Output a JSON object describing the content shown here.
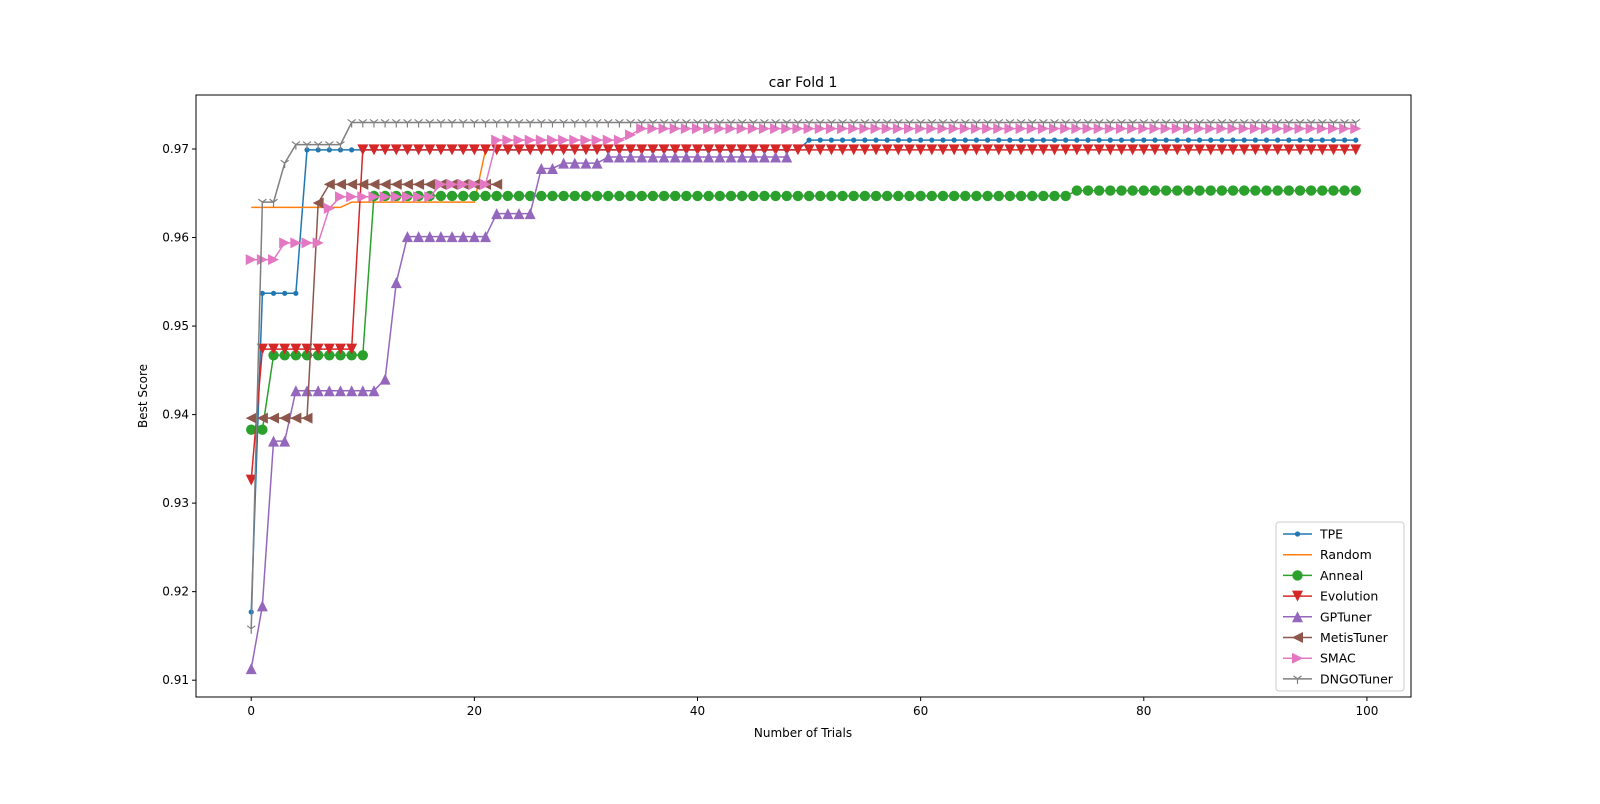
{
  "chart_data": {
    "type": "line",
    "title": "car Fold 1",
    "xlabel": "Number of Trials",
    "ylabel": "Best Score",
    "xlim": [
      -4.95,
      103.95
    ],
    "ylim": [
      0.9081,
      0.9761
    ],
    "xticks": [
      0,
      20,
      40,
      60,
      80,
      100
    ],
    "yticks": [
      0.91,
      0.92,
      0.93,
      0.94,
      0.95,
      0.96,
      0.97
    ],
    "ytick_labels": [
      "0.91",
      "0.92",
      "0.93",
      "0.94",
      "0.95",
      "0.96",
      "0.97"
    ],
    "grid": false,
    "legend_position": "lower-right",
    "series_format": "steps: [trial at which best score changes, best score]; value holds until next step; last trial given by end",
    "series": [
      {
        "name": "TPE",
        "color": "#1f77b4",
        "marker": "point",
        "end": 99,
        "steps": [
          [
            0,
            0.9177
          ],
          [
            1,
            0.9537
          ],
          [
            5,
            0.9699
          ],
          [
            50,
            0.971
          ]
        ]
      },
      {
        "name": "Random",
        "color": "#ff7f0e",
        "marker": "none",
        "end": 21,
        "steps": [
          [
            0,
            0.9634
          ],
          [
            9,
            0.964
          ],
          [
            21,
            0.9699
          ]
        ]
      },
      {
        "name": "Anneal",
        "color": "#2ca02c",
        "marker": "circle",
        "end": 99,
        "steps": [
          [
            0,
            0.9383
          ],
          [
            2,
            0.9467
          ],
          [
            11,
            0.9647
          ],
          [
            74,
            0.9653
          ]
        ]
      },
      {
        "name": "Evolution",
        "color": "#d62728",
        "marker": "triangle-down",
        "end": 99,
        "steps": [
          [
            0,
            0.9326
          ],
          [
            1,
            0.9474
          ],
          [
            10,
            0.9699
          ]
        ]
      },
      {
        "name": "GPTuner",
        "color": "#9467bd",
        "marker": "triangle-up",
        "end": 48,
        "steps": [
          [
            0,
            0.9113
          ],
          [
            1,
            0.9184
          ],
          [
            2,
            0.937
          ],
          [
            4,
            0.9427
          ],
          [
            12,
            0.944
          ],
          [
            13,
            0.9549
          ],
          [
            14,
            0.9601
          ],
          [
            22,
            0.9627
          ],
          [
            26,
            0.9678
          ],
          [
            28,
            0.9684
          ],
          [
            32,
            0.9691
          ]
        ]
      },
      {
        "name": "MetisTuner",
        "color": "#8c564b",
        "marker": "triangle-left",
        "end": 22,
        "steps": [
          [
            0,
            0.9396
          ],
          [
            6,
            0.9639
          ],
          [
            7,
            0.966
          ]
        ]
      },
      {
        "name": "SMAC",
        "color": "#e377c2",
        "marker": "triangle-right",
        "end": 99,
        "steps": [
          [
            0,
            0.9575
          ],
          [
            3,
            0.9594
          ],
          [
            7,
            0.9633
          ],
          [
            8,
            0.9646
          ],
          [
            17,
            0.966
          ],
          [
            22,
            0.971
          ],
          [
            34,
            0.9716
          ],
          [
            35,
            0.9723
          ]
        ]
      },
      {
        "name": "DNGOTuner",
        "color": "#7f7f7f",
        "marker": "tri-down",
        "end": 99,
        "steps": [
          [
            0,
            0.9158
          ],
          [
            1,
            0.964
          ],
          [
            3,
            0.9684
          ],
          [
            4,
            0.9705
          ],
          [
            9,
            0.973
          ]
        ]
      }
    ]
  }
}
